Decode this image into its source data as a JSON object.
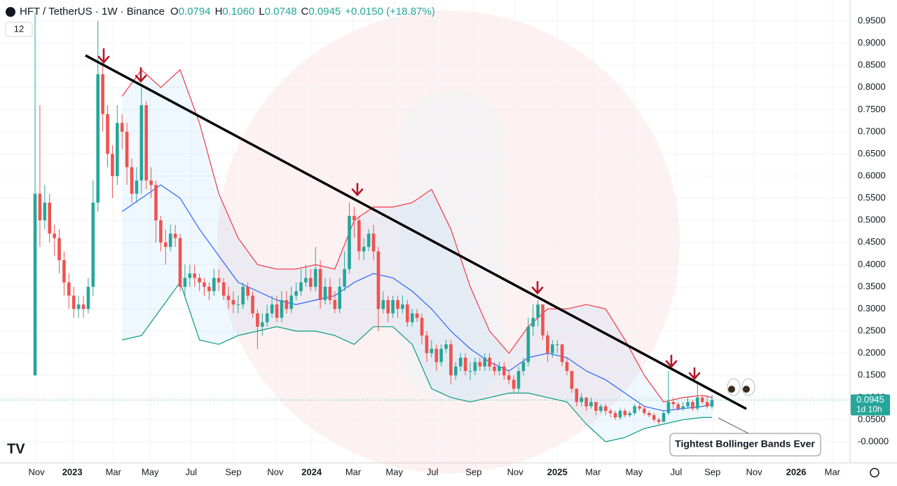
{
  "chart_data": {
    "type": "candlestick",
    "header": {
      "symbol": "HFT / TetherUS · 1W · Binance",
      "ohlc": [
        {
          "label": "O",
          "value": "0.0794"
        },
        {
          "label": "H",
          "value": "0.1060"
        },
        {
          "label": "L",
          "value": "0.0748"
        },
        {
          "label": "C",
          "value": "0.0945"
        }
      ],
      "change": "+0.0150 (+18.87%)",
      "indicator": "12"
    },
    "annotation": "Tightest Bollinger Bands Ever",
    "last_price": {
      "value": 0.0945,
      "label": "0.0945",
      "countdown": "1d 10h"
    },
    "up_color": "#26a69a",
    "down_color": "#ef5350",
    "open": [
      0.15,
      0.56,
      0.5,
      0.54,
      0.47,
      0.46,
      0.41,
      0.36,
      0.33,
      0.3,
      0.31,
      0.3,
      0.35,
      0.54,
      0.83,
      0.74,
      0.65,
      0.6,
      0.72,
      0.7,
      0.62,
      0.56,
      0.59,
      0.76,
      0.59,
      0.58,
      0.5,
      0.45,
      0.44,
      0.47,
      0.46,
      0.35,
      0.37,
      0.38,
      0.37,
      0.36,
      0.35,
      0.34,
      0.37,
      0.36,
      0.33,
      0.32,
      0.31,
      0.31,
      0.35,
      0.33,
      0.29,
      0.26,
      0.27,
      0.29,
      0.31,
      0.28,
      0.32,
      0.3,
      0.33,
      0.34,
      0.36,
      0.37,
      0.35,
      0.39,
      0.32,
      0.35,
      0.32,
      0.3,
      0.35,
      0.39,
      0.51,
      0.5,
      0.43,
      0.44,
      0.47,
      0.43,
      0.3,
      0.32,
      0.29,
      0.32,
      0.3,
      0.31,
      0.27,
      0.29,
      0.28,
      0.24,
      0.2,
      0.21,
      0.18,
      0.21,
      0.22,
      0.15,
      0.17,
      0.19,
      0.16,
      0.16,
      0.18,
      0.17,
      0.19,
      0.17,
      0.16,
      0.17,
      0.15,
      0.14,
      0.12,
      0.16,
      0.18,
      0.26,
      0.28,
      0.31,
      0.24,
      0.2,
      0.22,
      0.22,
      0.18,
      0.16,
      0.12,
      0.09,
      0.1,
      0.08,
      0.09,
      0.07,
      0.08,
      0.07,
      0.065,
      0.055,
      0.07,
      0.06,
      0.065,
      0.08,
      0.075,
      0.065,
      0.06,
      0.05,
      0.045,
      0.065,
      0.09,
      0.085,
      0.075,
      0.08,
      0.09,
      0.075,
      0.1,
      0.09,
      0.0794
    ],
    "high": [
      0.97,
      0.76,
      0.58,
      0.56,
      0.49,
      0.48,
      0.43,
      0.38,
      0.35,
      0.33,
      0.33,
      0.37,
      0.59,
      0.95,
      0.85,
      0.76,
      0.67,
      0.76,
      0.74,
      0.72,
      0.64,
      0.62,
      0.8,
      0.77,
      0.62,
      0.59,
      0.51,
      0.48,
      0.49,
      0.49,
      0.47,
      0.4,
      0.4,
      0.4,
      0.38,
      0.37,
      0.36,
      0.39,
      0.39,
      0.37,
      0.35,
      0.34,
      0.33,
      0.36,
      0.36,
      0.34,
      0.3,
      0.29,
      0.31,
      0.33,
      0.33,
      0.34,
      0.34,
      0.35,
      0.36,
      0.39,
      0.4,
      0.39,
      0.44,
      0.41,
      0.37,
      0.37,
      0.34,
      0.37,
      0.43,
      0.54,
      0.53,
      0.51,
      0.46,
      0.48,
      0.49,
      0.44,
      0.34,
      0.33,
      0.33,
      0.33,
      0.33,
      0.32,
      0.3,
      0.3,
      0.29,
      0.25,
      0.23,
      0.22,
      0.22,
      0.23,
      0.23,
      0.18,
      0.2,
      0.2,
      0.18,
      0.19,
      0.19,
      0.2,
      0.2,
      0.18,
      0.18,
      0.18,
      0.16,
      0.15,
      0.17,
      0.19,
      0.28,
      0.31,
      0.32,
      0.31,
      0.25,
      0.23,
      0.23,
      0.22,
      0.19,
      0.16,
      0.12,
      0.11,
      0.1,
      0.1,
      0.09,
      0.085,
      0.085,
      0.075,
      0.07,
      0.075,
      0.075,
      0.07,
      0.085,
      0.085,
      0.08,
      0.07,
      0.065,
      0.055,
      0.07,
      0.16,
      0.1,
      0.09,
      0.09,
      0.1,
      0.095,
      0.13,
      0.105,
      0.105,
      0.106
    ],
    "low": [
      0.15,
      0.44,
      0.48,
      0.45,
      0.42,
      0.38,
      0.33,
      0.3,
      0.28,
      0.28,
      0.28,
      0.29,
      0.33,
      0.52,
      0.7,
      0.62,
      0.55,
      0.58,
      0.66,
      0.58,
      0.54,
      0.54,
      0.56,
      0.57,
      0.55,
      0.45,
      0.43,
      0.4,
      0.43,
      0.44,
      0.34,
      0.33,
      0.35,
      0.35,
      0.34,
      0.33,
      0.32,
      0.33,
      0.34,
      0.32,
      0.3,
      0.29,
      0.29,
      0.3,
      0.32,
      0.28,
      0.21,
      0.24,
      0.26,
      0.28,
      0.27,
      0.27,
      0.29,
      0.29,
      0.32,
      0.33,
      0.35,
      0.34,
      0.34,
      0.3,
      0.31,
      0.31,
      0.29,
      0.29,
      0.34,
      0.38,
      0.46,
      0.41,
      0.41,
      0.43,
      0.41,
      0.25,
      0.29,
      0.27,
      0.28,
      0.28,
      0.29,
      0.26,
      0.26,
      0.27,
      0.22,
      0.18,
      0.19,
      0.16,
      0.17,
      0.2,
      0.13,
      0.14,
      0.16,
      0.15,
      0.14,
      0.15,
      0.16,
      0.16,
      0.16,
      0.15,
      0.15,
      0.14,
      0.13,
      0.11,
      0.11,
      0.15,
      0.17,
      0.24,
      0.26,
      0.23,
      0.18,
      0.19,
      0.2,
      0.17,
      0.15,
      0.11,
      0.08,
      0.08,
      0.07,
      0.075,
      0.06,
      0.065,
      0.06,
      0.055,
      0.05,
      0.05,
      0.055,
      0.055,
      0.06,
      0.07,
      0.06,
      0.055,
      0.045,
      0.04,
      0.045,
      0.06,
      0.075,
      0.07,
      0.07,
      0.075,
      0.07,
      0.07,
      0.085,
      0.075,
      0.0748
    ],
    "close": [
      0.56,
      0.5,
      0.54,
      0.47,
      0.46,
      0.41,
      0.36,
      0.33,
      0.3,
      0.31,
      0.3,
      0.35,
      0.54,
      0.83,
      0.74,
      0.65,
      0.6,
      0.72,
      0.7,
      0.62,
      0.56,
      0.59,
      0.76,
      0.59,
      0.58,
      0.5,
      0.45,
      0.44,
      0.47,
      0.46,
      0.35,
      0.37,
      0.38,
      0.37,
      0.36,
      0.35,
      0.34,
      0.37,
      0.36,
      0.33,
      0.32,
      0.31,
      0.31,
      0.35,
      0.33,
      0.29,
      0.26,
      0.27,
      0.29,
      0.31,
      0.28,
      0.32,
      0.3,
      0.33,
      0.34,
      0.36,
      0.37,
      0.35,
      0.39,
      0.32,
      0.35,
      0.32,
      0.3,
      0.35,
      0.39,
      0.51,
      0.5,
      0.43,
      0.44,
      0.47,
      0.43,
      0.3,
      0.32,
      0.29,
      0.32,
      0.3,
      0.31,
      0.27,
      0.29,
      0.28,
      0.24,
      0.2,
      0.21,
      0.18,
      0.21,
      0.22,
      0.15,
      0.17,
      0.19,
      0.16,
      0.16,
      0.18,
      0.17,
      0.19,
      0.17,
      0.16,
      0.17,
      0.15,
      0.14,
      0.12,
      0.16,
      0.18,
      0.26,
      0.28,
      0.31,
      0.24,
      0.2,
      0.22,
      0.22,
      0.18,
      0.16,
      0.12,
      0.09,
      0.1,
      0.08,
      0.09,
      0.07,
      0.08,
      0.07,
      0.065,
      0.055,
      0.07,
      0.06,
      0.065,
      0.08,
      0.075,
      0.065,
      0.06,
      0.05,
      0.045,
      0.065,
      0.09,
      0.085,
      0.075,
      0.08,
      0.09,
      0.075,
      0.1,
      0.09,
      0.0794,
      0.0945
    ],
    "bands": {
      "x": [
        18,
        22,
        26,
        30,
        34,
        38,
        42,
        46,
        50,
        54,
        58,
        62,
        66,
        70,
        74,
        78,
        82,
        86,
        90,
        94,
        98,
        102,
        106,
        110,
        114,
        118,
        122,
        126,
        130,
        134,
        138,
        140
      ],
      "upper": [
        0.78,
        0.84,
        0.8,
        0.84,
        0.72,
        0.56,
        0.46,
        0.4,
        0.39,
        0.39,
        0.4,
        0.39,
        0.5,
        0.53,
        0.53,
        0.54,
        0.57,
        0.48,
        0.35,
        0.25,
        0.2,
        0.26,
        0.3,
        0.3,
        0.31,
        0.3,
        0.23,
        0.15,
        0.09,
        0.1,
        0.105,
        0.1
      ],
      "middle": [
        0.52,
        0.55,
        0.58,
        0.55,
        0.48,
        0.42,
        0.36,
        0.34,
        0.32,
        0.31,
        0.32,
        0.33,
        0.36,
        0.38,
        0.37,
        0.34,
        0.3,
        0.25,
        0.21,
        0.18,
        0.16,
        0.19,
        0.2,
        0.19,
        0.16,
        0.14,
        0.11,
        0.08,
        0.07,
        0.075,
        0.08,
        0.085
      ],
      "lower": [
        0.23,
        0.24,
        0.3,
        0.36,
        0.23,
        0.22,
        0.24,
        0.25,
        0.26,
        0.25,
        0.25,
        0.24,
        0.22,
        0.26,
        0.26,
        0.22,
        0.12,
        0.1,
        0.09,
        0.1,
        0.11,
        0.11,
        0.1,
        0.09,
        0.04,
        0.0,
        0.01,
        0.03,
        0.04,
        0.05,
        0.055,
        0.055
      ],
      "upper_color": "#f23645",
      "middle_color": "#2962ff",
      "lower_color": "#089981"
    },
    "xlim": [
      -7.25,
      168.55
    ],
    "xticks": [
      {
        "value": 0.3,
        "label": "Nov"
      },
      {
        "value": 7.7,
        "label": "2023"
      },
      {
        "value": 16.2,
        "label": "Mar"
      },
      {
        "value": 23.8,
        "label": "May"
      },
      {
        "value": 32.3,
        "label": "Jul"
      },
      {
        "value": 41,
        "label": "Sep"
      },
      {
        "value": 49.7,
        "label": "Nov"
      },
      {
        "value": 57.2,
        "label": "2024"
      },
      {
        "value": 65.8,
        "label": "Mar"
      },
      {
        "value": 74.3,
        "label": "May"
      },
      {
        "value": 82.2,
        "label": "Jul"
      },
      {
        "value": 90.7,
        "label": "Sep"
      },
      {
        "value": 99.3,
        "label": "Nov"
      },
      {
        "value": 108,
        "label": "2025"
      },
      {
        "value": 115.4,
        "label": "Mar"
      },
      {
        "value": 123.9,
        "label": "May"
      },
      {
        "value": 132.6,
        "label": "Jul"
      },
      {
        "value": 140.1,
        "label": "Sep"
      },
      {
        "value": 148.7,
        "label": "Nov"
      },
      {
        "value": 157.4,
        "label": "2026"
      },
      {
        "value": 164.9,
        "label": "Mar"
      }
    ],
    "ylim": [
      -0.0475,
      0.9975
    ],
    "yticks": [
      {
        "value": 0,
        "label": "-0.0000"
      },
      {
        "value": 0.05,
        "label": "0.0500"
      },
      {
        "value": 0.1,
        "label": "0.1000"
      },
      {
        "value": 0.15,
        "label": "0.1500"
      },
      {
        "value": 0.2,
        "label": "0.2000"
      },
      {
        "value": 0.25,
        "label": "0.2500"
      },
      {
        "value": 0.3,
        "label": "0.3000"
      },
      {
        "value": 0.35,
        "label": "0.3500"
      },
      {
        "value": 0.4,
        "label": "0.4000"
      },
      {
        "value": 0.45,
        "label": "0.4500"
      },
      {
        "value": 0.5,
        "label": "0.5000"
      },
      {
        "value": 0.55,
        "label": "0.5500"
      },
      {
        "value": 0.6,
        "label": "0.6000"
      },
      {
        "value": 0.65,
        "label": "0.6500"
      },
      {
        "value": 0.7,
        "label": "0.7000"
      },
      {
        "value": 0.75,
        "label": "0.7500"
      },
      {
        "value": 0.8,
        "label": "0.8000"
      },
      {
        "value": 0.85,
        "label": "0.8500"
      },
      {
        "value": 0.9,
        "label": "0.9000"
      },
      {
        "value": 0.95,
        "label": "0.9500"
      }
    ],
    "grid": true
  }
}
